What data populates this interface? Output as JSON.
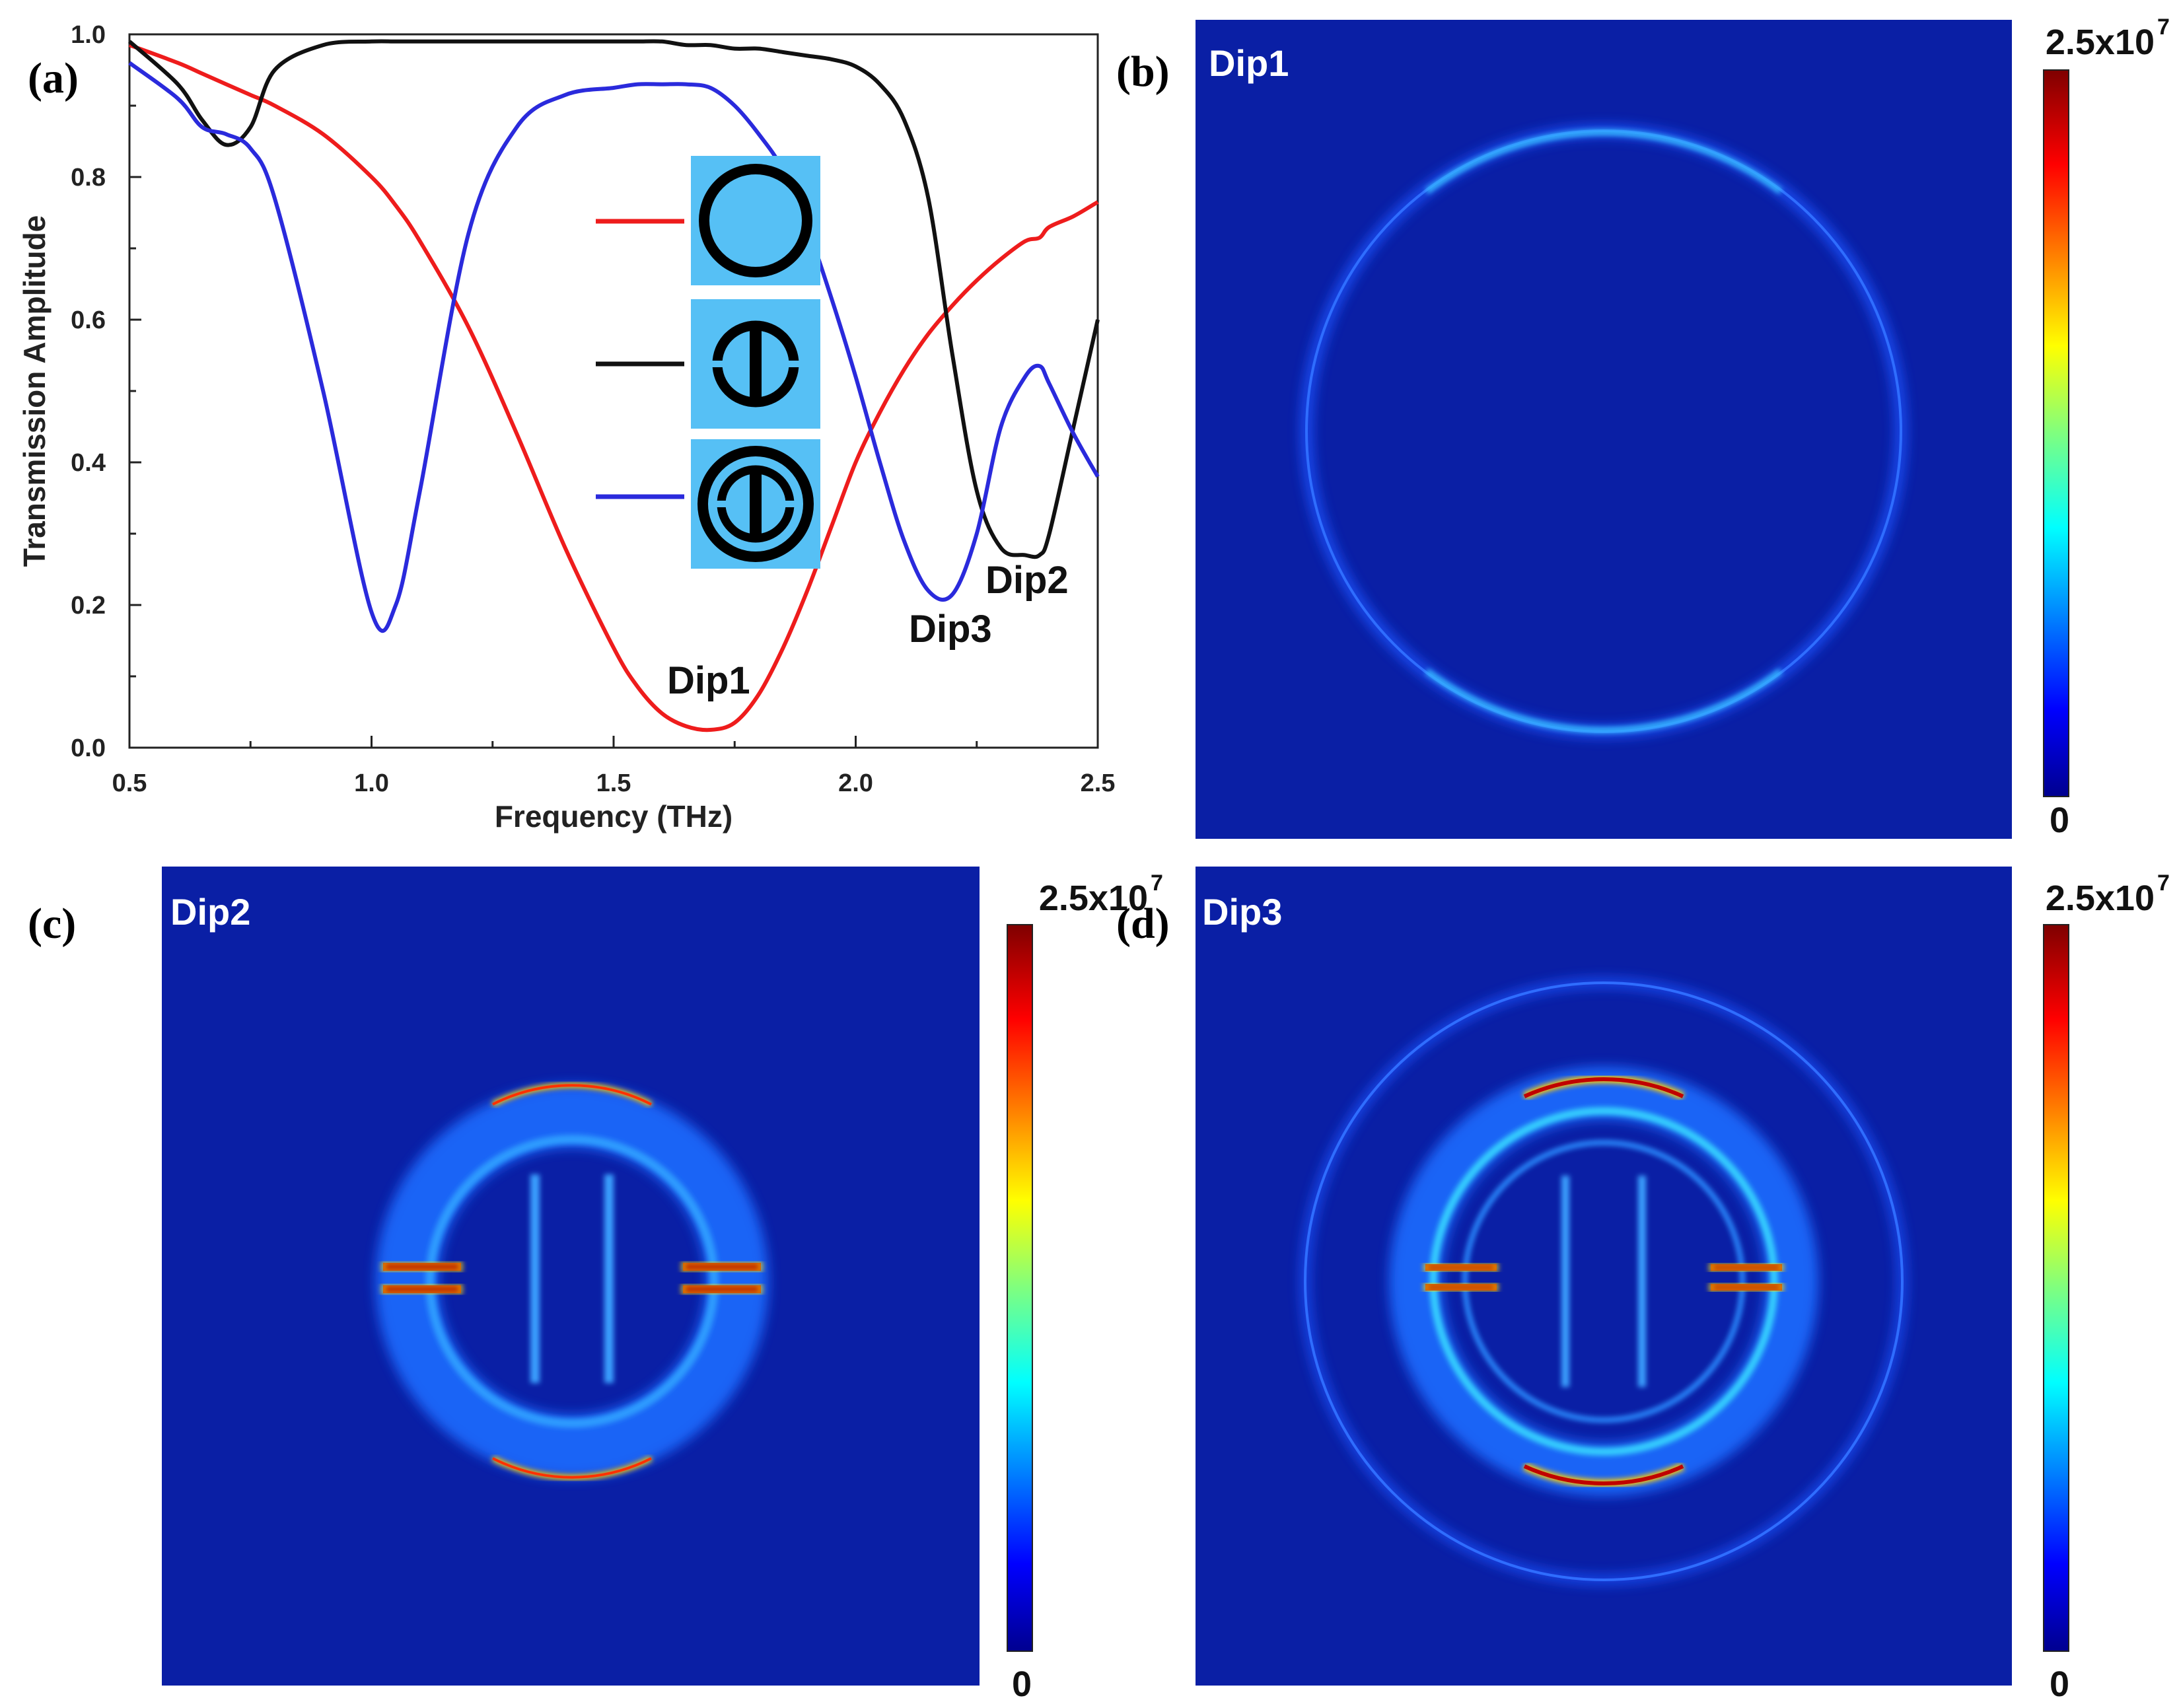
{
  "colors": {
    "red_curve": "#ee1c1c",
    "black_curve": "#111111",
    "blue_curve": "#2a2adc",
    "map_background": "#0a1fa5",
    "inset_background": "#56c0f5",
    "field_glow": "#2a7bff"
  },
  "panel_a": {
    "label": "(a)",
    "chart_data": {
      "type": "line",
      "title": "",
      "xlabel": "Frequency (THz)",
      "ylabel": "Transmission Amplitude",
      "xlim": [
        0.5,
        2.5
      ],
      "ylim": [
        0.0,
        1.0
      ],
      "xticks": [
        "0.5",
        "1.0",
        "1.5",
        "2.0",
        "2.5"
      ],
      "yticks": [
        "0.0",
        "0.2",
        "0.4",
        "0.6",
        "0.8",
        "1.0"
      ],
      "x": [
        0.5,
        0.6,
        0.65,
        0.7,
        0.75,
        0.8,
        0.9,
        1.0,
        1.05,
        1.1,
        1.2,
        1.3,
        1.4,
        1.5,
        1.55,
        1.6,
        1.65,
        1.7,
        1.75,
        1.8,
        1.85,
        1.9,
        1.95,
        2.0,
        2.05,
        2.1,
        2.15,
        2.2,
        2.25,
        2.3,
        2.35,
        2.38,
        2.4,
        2.45,
        2.5
      ],
      "series": [
        {
          "name": "ring",
          "color": "red",
          "values": [
            0.985,
            0.96,
            0.945,
            0.93,
            0.915,
            0.9,
            0.86,
            0.8,
            0.76,
            0.71,
            0.59,
            0.44,
            0.28,
            0.14,
            0.085,
            0.048,
            0.03,
            0.025,
            0.035,
            0.075,
            0.14,
            0.22,
            0.31,
            0.4,
            0.47,
            0.53,
            0.58,
            0.62,
            0.655,
            0.685,
            0.71,
            0.715,
            0.73,
            0.745,
            0.765
          ]
        },
        {
          "name": "split ring with bar",
          "color": "black",
          "values": [
            0.99,
            0.93,
            0.88,
            0.845,
            0.87,
            0.95,
            0.985,
            0.99,
            0.99,
            0.99,
            0.99,
            0.99,
            0.99,
            0.99,
            0.99,
            0.99,
            0.985,
            0.985,
            0.98,
            0.98,
            0.975,
            0.97,
            0.965,
            0.955,
            0.93,
            0.88,
            0.77,
            0.55,
            0.36,
            0.28,
            0.27,
            0.27,
            0.3,
            0.45,
            0.6
          ]
        },
        {
          "name": "combined structure",
          "color": "blue",
          "values": [
            0.96,
            0.91,
            0.87,
            0.86,
            0.84,
            0.77,
            0.5,
            0.19,
            0.2,
            0.36,
            0.72,
            0.87,
            0.915,
            0.925,
            0.93,
            0.93,
            0.93,
            0.925,
            0.9,
            0.86,
            0.81,
            0.73,
            0.63,
            0.52,
            0.4,
            0.29,
            0.22,
            0.215,
            0.3,
            0.45,
            0.52,
            0.535,
            0.51,
            0.44,
            0.38
          ]
        }
      ],
      "annotations": [
        {
          "text": "Dip1",
          "x": 1.72,
          "y": 0.025
        },
        {
          "text": "Dip2",
          "x": 2.38,
          "y": 0.27
        },
        {
          "text": "Dip3",
          "x": 2.21,
          "y": 0.21
        }
      ]
    }
  },
  "panel_b": {
    "label": "(b)",
    "title": "Dip1",
    "cb_max_base": "2.5x10",
    "cb_max_exp": "7",
    "cb_min": "0"
  },
  "panel_c": {
    "label": "(c)",
    "title": "Dip2",
    "cb_max_base": "2.5x10",
    "cb_max_exp": "7",
    "cb_min": "0"
  },
  "panel_d": {
    "label": "(d)",
    "title": "Dip3",
    "cb_max_base": "2.5x10",
    "cb_max_exp": "7",
    "cb_min": "0"
  }
}
